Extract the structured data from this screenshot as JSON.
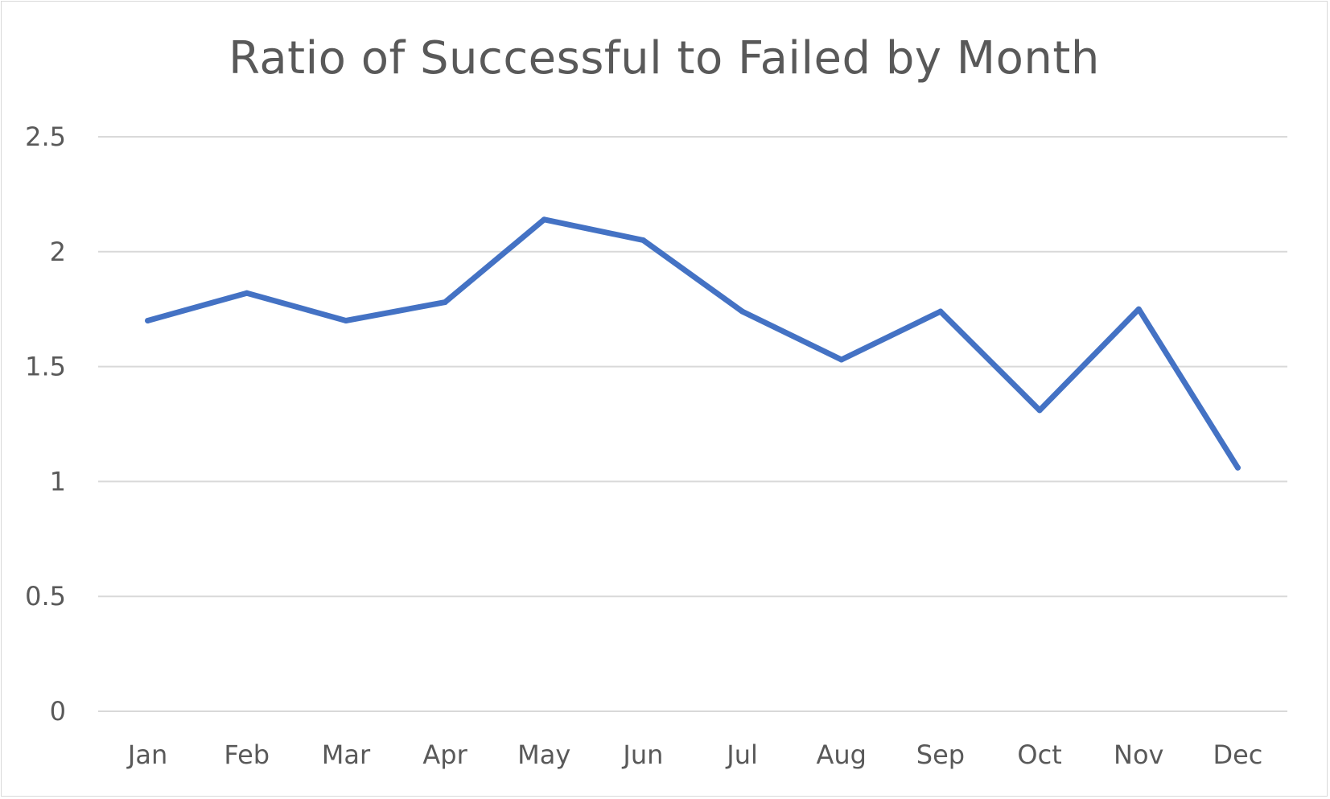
{
  "chart_data": {
    "type": "line",
    "title": "Ratio of Successful to Failed by Month",
    "xlabel": "",
    "ylabel": "",
    "categories": [
      "Jan",
      "Feb",
      "Mar",
      "Apr",
      "May",
      "Jun",
      "Jul",
      "Aug",
      "Sep",
      "Oct",
      "Nov",
      "Dec"
    ],
    "series": [
      {
        "values": [
          1.7,
          1.82,
          1.7,
          1.78,
          2.14,
          2.05,
          1.74,
          1.53,
          1.74,
          1.31,
          1.75,
          1.06
        ],
        "color": "#4472c4"
      }
    ],
    "ylim": [
      0,
      2.5
    ],
    "yticks": [
      0,
      0.5,
      1,
      1.5,
      2,
      2.5
    ],
    "ytick_labels": [
      "0",
      "0.5",
      "1",
      "1.5",
      "2",
      "2.5"
    ],
    "grid": true,
    "legend": "none",
    "colors": {
      "gridline": "#d9d9d9",
      "text": "#595959",
      "line": "#4472c4"
    }
  }
}
